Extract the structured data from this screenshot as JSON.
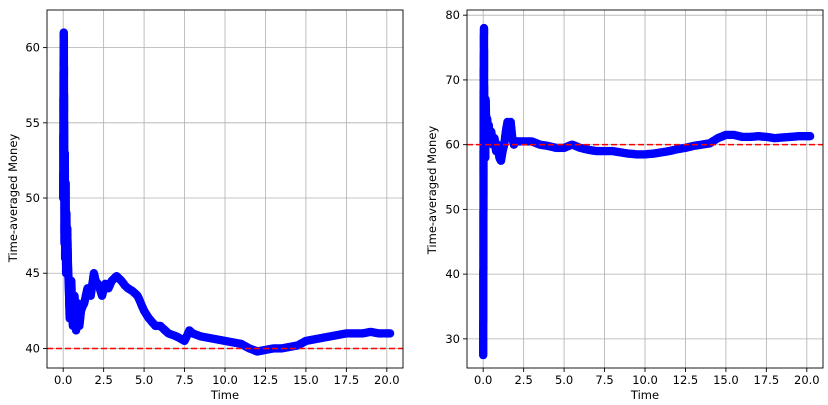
{
  "chart_data": [
    {
      "type": "scatter",
      "xlabel": "Time",
      "ylabel": "Time-averaged Money",
      "xlim": [
        -1.0,
        21.0
      ],
      "ylim": [
        38.7,
        62.5
      ],
      "xticks": [
        0.0,
        2.5,
        5.0,
        7.5,
        10.0,
        12.5,
        15.0,
        17.5,
        20.0
      ],
      "xtick_labels": [
        "0.0",
        "2.5",
        "5.0",
        "7.5",
        "10.0",
        "12.5",
        "15.0",
        "17.5",
        "20.0"
      ],
      "yticks": [
        40,
        45,
        50,
        55,
        60
      ],
      "ytick_labels": [
        "40",
        "45",
        "50",
        "55",
        "60"
      ],
      "grid": true,
      "reference_line": {
        "y": 40,
        "color": "#ff0000",
        "style": "dashed"
      },
      "marker_color": "#0000ff",
      "series": [
        {
          "x": [
            0.0,
            0.02,
            0.04,
            0.06,
            0.08,
            0.1,
            0.12,
            0.15,
            0.18,
            0.2,
            0.22,
            0.25,
            0.3,
            0.35,
            0.4,
            0.5,
            0.6,
            0.7,
            0.8,
            0.9,
            1.0,
            1.1,
            1.2,
            1.3,
            1.5,
            1.7,
            1.9,
            2.0,
            2.2,
            2.4,
            2.6,
            2.8,
            3.0,
            3.3,
            3.6,
            3.8,
            4.0,
            4.3,
            4.6,
            5.0,
            5.3,
            5.7,
            6.0,
            6.5,
            7.0,
            7.5,
            7.8,
            8.0,
            8.5,
            9.0,
            9.5,
            10.0,
            10.5,
            11.0,
            11.5,
            12.0,
            12.5,
            13.0,
            13.5,
            14.0,
            14.5,
            15.0,
            15.5,
            16.0,
            16.5,
            17.0,
            17.5,
            18.0,
            18.5,
            19.0,
            19.5,
            20.0,
            20.2
          ],
          "y": [
            50,
            58,
            61,
            55,
            47,
            53,
            46,
            51,
            45,
            49,
            46,
            48,
            45.5,
            44,
            42,
            44.5,
            41.5,
            43.5,
            41.2,
            43,
            41.5,
            42.5,
            42.8,
            43,
            44,
            43.5,
            45,
            44.5,
            44.2,
            43.5,
            44.3,
            44,
            44.5,
            44.8,
            44.5,
            44.2,
            44,
            43.8,
            43.5,
            42.5,
            42,
            41.5,
            41.5,
            41,
            40.8,
            40.5,
            41.2,
            41,
            40.8,
            40.7,
            40.6,
            40.5,
            40.4,
            40.3,
            40,
            39.8,
            39.9,
            40,
            40,
            40.1,
            40.2,
            40.5,
            40.6,
            40.7,
            40.8,
            40.9,
            41,
            41,
            41,
            41.1,
            41,
            41,
            41
          ]
        }
      ]
    },
    {
      "type": "scatter",
      "xlabel": "Time",
      "ylabel": "Time-averaged Money",
      "xlim": [
        -1.0,
        21.0
      ],
      "ylim": [
        25.5,
        80.8
      ],
      "xticks": [
        0.0,
        2.5,
        5.0,
        7.5,
        10.0,
        12.5,
        15.0,
        17.5,
        20.0
      ],
      "xtick_labels": [
        "0.0",
        "2.5",
        "5.0",
        "7.5",
        "10.0",
        "12.5",
        "15.0",
        "17.5",
        "20.0"
      ],
      "yticks": [
        30,
        40,
        50,
        60,
        70,
        80
      ],
      "ytick_labels": [
        "30",
        "40",
        "50",
        "60",
        "70",
        "80"
      ],
      "grid": true,
      "reference_line": {
        "y": 60,
        "color": "#ff0000",
        "style": "dashed"
      },
      "marker_color": "#0000ff",
      "series": [
        {
          "x": [
            0.0,
            0.01,
            0.02,
            0.03,
            0.05,
            0.07,
            0.1,
            0.13,
            0.15,
            0.2,
            0.25,
            0.3,
            0.35,
            0.4,
            0.5,
            0.6,
            0.7,
            0.8,
            0.9,
            1.0,
            1.1,
            1.2,
            1.3,
            1.4,
            1.5,
            1.6,
            1.7,
            1.8,
            1.9,
            2.0,
            2.2,
            2.5,
            3.0,
            3.5,
            4.0,
            4.5,
            5.0,
            5.5,
            6.0,
            6.5,
            7.0,
            7.5,
            8.0,
            8.5,
            9.0,
            9.5,
            10.0,
            10.5,
            11.0,
            11.5,
            12.0,
            12.5,
            13.0,
            13.5,
            14.0,
            14.5,
            15.0,
            15.5,
            16.0,
            16.5,
            17.0,
            17.5,
            18.0,
            18.5,
            19.0,
            19.5,
            20.0,
            20.2
          ],
          "y": [
            27.5,
            40,
            55,
            70,
            78,
            60,
            65,
            58,
            67,
            62,
            64,
            61,
            63,
            60.5,
            62,
            60,
            61,
            59,
            60,
            58,
            57.5,
            59,
            60,
            62,
            63.5,
            62,
            63.5,
            61,
            60,
            60.5,
            60.5,
            60.5,
            60.5,
            60,
            59.8,
            59.5,
            59.5,
            60,
            59.5,
            59.2,
            59,
            59,
            59,
            58.8,
            58.6,
            58.5,
            58.5,
            58.6,
            58.8,
            59,
            59.3,
            59.5,
            59.8,
            60,
            60.2,
            61,
            61.5,
            61.5,
            61.2,
            61.2,
            61.3,
            61.2,
            61,
            61.1,
            61.2,
            61.3,
            61.3,
            61.3
          ]
        }
      ]
    }
  ]
}
